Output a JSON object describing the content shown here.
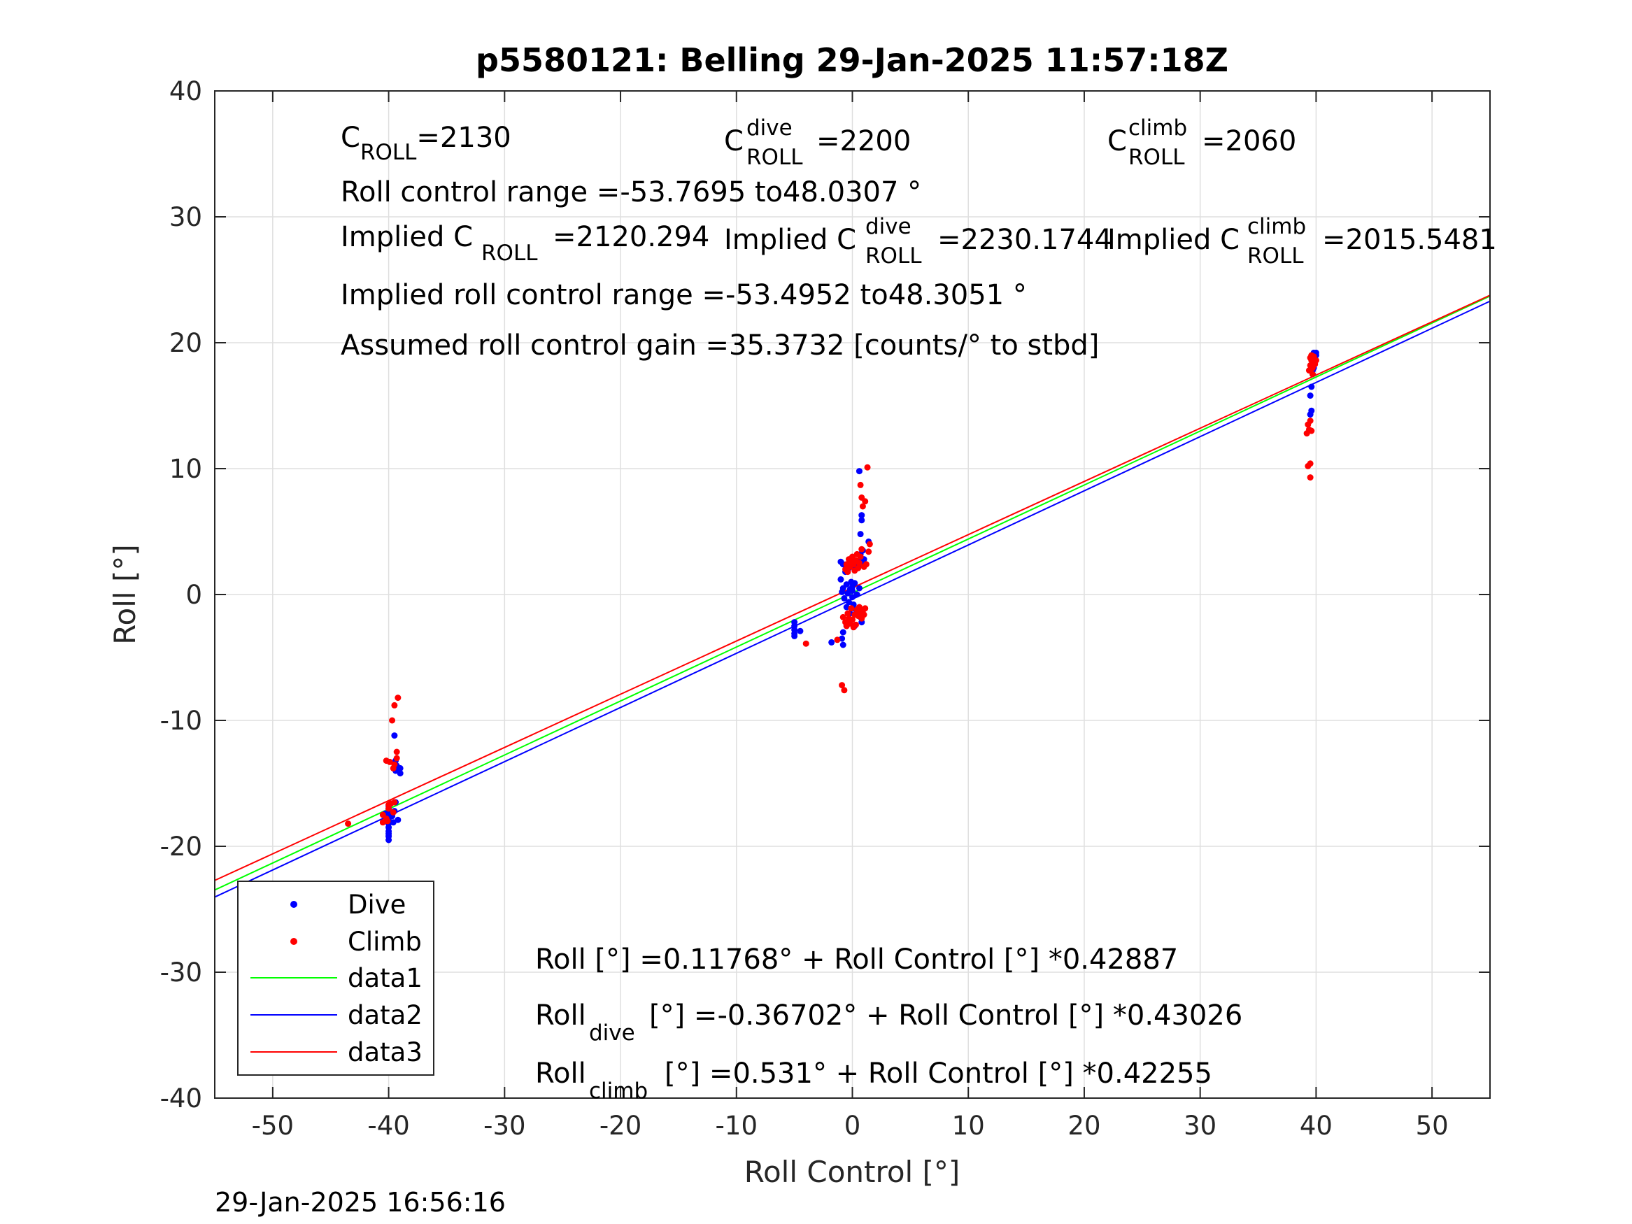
{
  "chart_data": {
    "type": "scatter",
    "title": "p5580121: Belling 29-Jan-2025 11:57:18Z",
    "xlabel": "Roll Control [°]",
    "ylabel": "Roll [°]",
    "xlim": [
      -55,
      55
    ],
    "ylim": [
      -40,
      40
    ],
    "xticks": [
      -50,
      -40,
      -30,
      -20,
      -10,
      0,
      10,
      20,
      30,
      40,
      50
    ],
    "yticks": [
      -40,
      -30,
      -20,
      -10,
      0,
      10,
      20,
      30,
      40
    ],
    "grid": true,
    "legend_position": "bottom-left",
    "timestamp": "29-Jan-2025 16:56:16",
    "annotations": {
      "c_roll_base": "C",
      "c_roll_sub": "ROLL",
      "c_roll_val": "=2130",
      "c_dive_base": "C",
      "c_dive_sup": "dive",
      "c_dive_sub": "ROLL",
      "c_dive_val": "=2200",
      "c_climb_base": "C",
      "c_climb_sup": "climb",
      "c_climb_sub": "ROLL",
      "c_climb_val": "=2060",
      "roll_range": "Roll control range =-53.7695 to48.0307 °",
      "implied_c_prefix": "Implied C",
      "implied_c_sub": "ROLL",
      "implied_c_val": "=2120.294",
      "implied_dive_prefix": "Implied C",
      "implied_dive_sup": "dive",
      "implied_dive_sub": "ROLL",
      "implied_dive_val": "=2230.1744",
      "implied_climb_prefix": "Implied C",
      "implied_climb_sup": "climb",
      "implied_climb_sub": "ROLL",
      "implied_climb_val": "=2015.5481",
      "implied_range": "Implied roll control range =-53.4952 to48.3051 °",
      "gain": "Assumed roll control gain =35.3732 [counts/° to stbd]",
      "eq_all": "Roll [°] =0.11768° + Roll Control [°] *0.42887",
      "eq_dive_base": "Roll",
      "eq_dive_sub": "dive",
      "eq_dive_rest": "[°] =-0.36702° + Roll Control [°] *0.43026",
      "eq_climb_base": "Roll",
      "eq_climb_sub": "climb",
      "eq_climb_rest": "[°] =0.531° + Roll Control [°] *0.42255"
    },
    "series": [
      {
        "name": "Dive",
        "kind": "points",
        "color": "#0000ff",
        "points": [
          [
            -40,
            -19.5
          ],
          [
            -40,
            -19.2
          ],
          [
            -40,
            -19.0
          ],
          [
            -40,
            -18.8
          ],
          [
            -40,
            -18.5
          ],
          [
            -40,
            -18.2
          ],
          [
            -40,
            -18.0
          ],
          [
            -40,
            -17.8
          ],
          [
            -40,
            -17.5
          ],
          [
            -40,
            -17.3
          ],
          [
            -40,
            -17.0
          ],
          [
            -40,
            -16.8
          ],
          [
            -39.7,
            -17.6
          ],
          [
            -39.6,
            -18.1
          ],
          [
            -39.5,
            -17.2
          ],
          [
            -39.4,
            -16.5
          ],
          [
            -39.4,
            -14.0
          ],
          [
            -39.4,
            -13.2
          ],
          [
            -39.5,
            -11.2
          ],
          [
            -39.3,
            -13.6
          ],
          [
            -39,
            -13.8
          ],
          [
            -39,
            -14.2
          ],
          [
            -39.2,
            -17.9
          ],
          [
            -40.3,
            -17.4
          ],
          [
            -5,
            -2.2
          ],
          [
            -5,
            -2.5
          ],
          [
            -5,
            -2.8
          ],
          [
            -5,
            -3.1
          ],
          [
            -5,
            -3.3
          ],
          [
            -4.5,
            -2.9
          ],
          [
            -1.8,
            -3.8
          ],
          [
            -0.9,
            -3.5
          ],
          [
            -0.8,
            -3.0
          ],
          [
            -0.8,
            -4.0
          ],
          [
            -0.5,
            -2.5
          ],
          [
            -1.0,
            1.2
          ],
          [
            -0.9,
            0.2
          ],
          [
            -0.8,
            0.5
          ],
          [
            -0.7,
            -0.3
          ],
          [
            -0.5,
            0.8
          ],
          [
            -0.4,
            0.1
          ],
          [
            -0.3,
            -0.6
          ],
          [
            -0.2,
            0.4
          ],
          [
            -0.1,
            1.0
          ],
          [
            0,
            0.3
          ],
          [
            0,
            -0.2
          ],
          [
            0,
            0.6
          ],
          [
            0.1,
            -0.8
          ],
          [
            0.2,
            0.9
          ],
          [
            0.3,
            -1.2
          ],
          [
            0.4,
            0.0
          ],
          [
            0.5,
            -1.5
          ],
          [
            0.6,
            0.5
          ],
          [
            0.7,
            -1.8
          ],
          [
            0.8,
            -2.2
          ],
          [
            0.2,
            -2.5
          ],
          [
            -0.2,
            -1.5
          ],
          [
            -0.5,
            -1.0
          ],
          [
            -0.6,
            1.8
          ],
          [
            -0.8,
            2.4
          ],
          [
            -1.0,
            2.6
          ],
          [
            0.5,
            2.2
          ],
          [
            0.6,
            2.7
          ],
          [
            0.7,
            3.2
          ],
          [
            0.8,
            2.5
          ],
          [
            0.9,
            3.5
          ],
          [
            1.0,
            2.8
          ],
          [
            0.8,
            6.3
          ],
          [
            0.8,
            5.9
          ],
          [
            0.7,
            4.8
          ],
          [
            0.6,
            9.8
          ],
          [
            1.4,
            4.2
          ],
          [
            0.2,
            2.0
          ],
          [
            -0.3,
            2.1
          ],
          [
            39.5,
            14.3
          ],
          [
            39.6,
            14.6
          ],
          [
            39.5,
            15.8
          ],
          [
            39.6,
            16.5
          ],
          [
            39.7,
            17.5
          ],
          [
            39.8,
            18.0
          ],
          [
            39.9,
            18.5
          ],
          [
            40.0,
            19.0
          ],
          [
            39.8,
            19.2
          ],
          [
            40.0,
            19.2
          ],
          [
            39.6,
            18.7
          ],
          [
            39.7,
            17.8
          ]
        ]
      },
      {
        "name": "Climb",
        "kind": "points",
        "color": "#ff0000",
        "points": [
          [
            -43.5,
            -18.2
          ],
          [
            -40.5,
            -18.1
          ],
          [
            -40.5,
            -17.5
          ],
          [
            -40.2,
            -17.8
          ],
          [
            -40.0,
            -16.7
          ],
          [
            -39.8,
            -16.6
          ],
          [
            -39.6,
            -17.3
          ],
          [
            -39.5,
            -16.5
          ],
          [
            -40.2,
            -13.2
          ],
          [
            -39.9,
            -13.3
          ],
          [
            -39.6,
            -13.8
          ],
          [
            -39.5,
            -13.5
          ],
          [
            -39.3,
            -13.0
          ],
          [
            -39.3,
            -12.5
          ],
          [
            -39.7,
            -10.0
          ],
          [
            -39.5,
            -8.8
          ],
          [
            -39.2,
            -8.2
          ],
          [
            -40,
            -17.0
          ],
          [
            -40.1,
            -18.0
          ],
          [
            -4,
            -3.9
          ],
          [
            -1.3,
            -3.6
          ],
          [
            -0.9,
            -7.2
          ],
          [
            -0.7,
            -7.6
          ],
          [
            -0.8,
            -1.8
          ],
          [
            -0.6,
            -2.2
          ],
          [
            -0.5,
            -2.5
          ],
          [
            -0.3,
            -1.9
          ],
          [
            -0.2,
            -2.3
          ],
          [
            0,
            -2.0
          ],
          [
            0.1,
            -2.6
          ],
          [
            0.2,
            -1.6
          ],
          [
            0.3,
            -2.4
          ],
          [
            0.4,
            -1.2
          ],
          [
            0.5,
            -1.7
          ],
          [
            0.6,
            -1.0
          ],
          [
            0.7,
            -1.4
          ],
          [
            0.8,
            -1.9
          ],
          [
            0.9,
            -1.3
          ],
          [
            1.0,
            -1.6
          ],
          [
            1.1,
            -1.1
          ],
          [
            -0.4,
            -1.5
          ],
          [
            -0.1,
            -1.1
          ],
          [
            -0.6,
            2.0
          ],
          [
            -0.5,
            2.4
          ],
          [
            -0.4,
            1.8
          ],
          [
            -0.3,
            2.8
          ],
          [
            -0.2,
            2.2
          ],
          [
            -0.1,
            2.6
          ],
          [
            0,
            3.0
          ],
          [
            0.1,
            2.4
          ],
          [
            0.2,
            1.9
          ],
          [
            0.3,
            2.7
          ],
          [
            0.4,
            3.2
          ],
          [
            0.5,
            2.1
          ],
          [
            0.6,
            2.5
          ],
          [
            0.7,
            3.0
          ],
          [
            0.8,
            3.6
          ],
          [
            1.0,
            2.2
          ],
          [
            1.2,
            2.4
          ],
          [
            1.4,
            3.4
          ],
          [
            1.5,
            4.0
          ],
          [
            0.9,
            7.0
          ],
          [
            0.8,
            7.7
          ],
          [
            0.7,
            8.7
          ],
          [
            1.1,
            7.4
          ],
          [
            1.3,
            10.1
          ],
          [
            39.3,
            10.2
          ],
          [
            39.5,
            10.4
          ],
          [
            39.5,
            9.3
          ],
          [
            39.2,
            12.8
          ],
          [
            39.3,
            13.5
          ],
          [
            39.4,
            13.1
          ],
          [
            39.6,
            13.0
          ],
          [
            39.5,
            13.8
          ],
          [
            39.4,
            17.8
          ],
          [
            39.5,
            18.2
          ],
          [
            39.6,
            18.6
          ],
          [
            39.7,
            17.5
          ],
          [
            39.8,
            18.9
          ],
          [
            39.9,
            18.3
          ],
          [
            40.0,
            18.6
          ],
          [
            39.6,
            19.0
          ],
          [
            39.7,
            18.0
          ],
          [
            39.5,
            18.8
          ]
        ]
      },
      {
        "name": "data1",
        "kind": "line",
        "color": "#00ff00",
        "intercept": 0.11768,
        "slope": 0.42887
      },
      {
        "name": "data2",
        "kind": "line",
        "color": "#0000ff",
        "intercept": -0.36702,
        "slope": 0.43026
      },
      {
        "name": "data3",
        "kind": "line",
        "color": "#ff0000",
        "intercept": 0.531,
        "slope": 0.42255
      }
    ]
  }
}
